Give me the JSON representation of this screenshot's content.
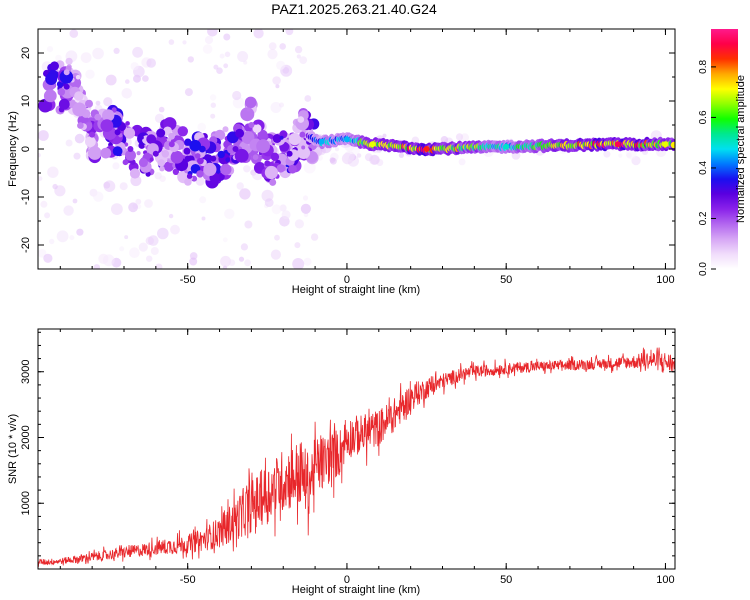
{
  "figure_title": "PAZ1.2025.263.21.40.G24",
  "colors": {
    "snr_line": "#e8272b",
    "axis": "#000000",
    "colormap": [
      "#ffffff",
      "#f0dcfb",
      "#d6a6f5",
      "#b266ef",
      "#8a22ea",
      "#5a00e0",
      "#1a10f0",
      "#0078ff",
      "#00e0f0",
      "#00e890",
      "#10ff00",
      "#90ff00",
      "#ffff00",
      "#ffa800",
      "#ff3000",
      "#ff0048",
      "#ff1a8c"
    ]
  },
  "chart_data": [
    {
      "type": "heatmap",
      "title": "",
      "xlabel": "Height of straight line (km)",
      "ylabel": "Frequency (Hz)",
      "xlim": [
        -97,
        103
      ],
      "ylim": [
        -25,
        25
      ],
      "xticks": [
        -50,
        0,
        50,
        100
      ],
      "xtick_labels": [
        "-50",
        "0",
        "50",
        "100"
      ],
      "yticks": [
        -20,
        -10,
        0,
        10,
        20
      ],
      "ytick_labels": [
        "-20",
        "-10",
        "0",
        "10",
        "20"
      ],
      "colorbar": {
        "label": "Normalized spectral amplitude",
        "range": [
          0,
          0.95
        ],
        "ticks": [
          0,
          0.2,
          0.4,
          0.6,
          0.8
        ],
        "tick_labels": [
          "0.0",
          "0.2",
          "0.4",
          "0.6",
          "0.8"
        ]
      },
      "description_points": [
        {
          "x": -88,
          "y": 13,
          "amp": 0.3
        },
        {
          "x": -88,
          "y": 16,
          "amp": 0.12
        },
        {
          "x": -80,
          "y": 3,
          "amp": 0.22
        },
        {
          "x": -72,
          "y": 3.5,
          "amp": 0.3
        },
        {
          "x": -68,
          "y": 0,
          "amp": 0.25
        },
        {
          "x": -60,
          "y": -1,
          "amp": 0.28
        },
        {
          "x": -55,
          "y": 1,
          "amp": 0.22
        },
        {
          "x": -50,
          "y": -2,
          "amp": 0.3
        },
        {
          "x": -42,
          "y": -2,
          "amp": 0.3
        },
        {
          "x": -35,
          "y": 0,
          "amp": 0.28
        },
        {
          "x": -30,
          "y": 5,
          "amp": 0.18
        },
        {
          "x": -25,
          "y": -3,
          "amp": 0.25
        },
        {
          "x": -18,
          "y": -1,
          "amp": 0.3
        },
        {
          "x": -14,
          "y": 3,
          "amp": 0.2
        },
        {
          "x": -8,
          "y": 1.5,
          "amp": 0.45
        },
        {
          "x": 0,
          "y": 2,
          "amp": 0.45
        },
        {
          "x": 8,
          "y": 1,
          "amp": 0.7
        },
        {
          "x": 25,
          "y": 0,
          "amp": 0.85
        },
        {
          "x": 50,
          "y": 0.5,
          "amp": 0.5
        },
        {
          "x": 85,
          "y": 1,
          "amp": 0.9
        },
        {
          "x": 100,
          "y": 1,
          "amp": 0.7
        }
      ]
    },
    {
      "type": "line",
      "title": "",
      "xlabel": "Height of straight line (km)",
      "ylabel": "SNR (10 * v/v)",
      "xlim": [
        -97,
        103
      ],
      "ylim": [
        0,
        3650
      ],
      "xticks": [
        -50,
        0,
        50,
        100
      ],
      "xtick_labels": [
        "-50",
        "0",
        "50",
        "100"
      ],
      "yticks": [
        1000,
        2000,
        3000
      ],
      "ytick_labels": [
        "1000",
        "2000",
        "3000"
      ],
      "series": [
        {
          "name": "SNR",
          "x": [
            -97,
            -90,
            -80,
            -70,
            -60,
            -50,
            -45,
            -40,
            -35,
            -30,
            -25,
            -20,
            -15,
            -12,
            -10,
            -5,
            -2,
            0,
            5,
            10,
            15,
            20,
            25,
            30,
            35,
            40,
            50,
            60,
            70,
            80,
            90,
            95,
            100,
            103
          ],
          "values": [
            100,
            120,
            180,
            250,
            320,
            380,
            450,
            560,
            750,
            950,
            1150,
            1350,
            1450,
            1300,
            1550,
            1700,
            1800,
            2000,
            2050,
            2150,
            2350,
            2600,
            2750,
            2850,
            2950,
            3000,
            3050,
            3080,
            3100,
            3120,
            3150,
            3180,
            3150,
            3100
          ],
          "noise": [
            60,
            60,
            90,
            110,
            140,
            180,
            220,
            300,
            400,
            500,
            550,
            600,
            650,
            600,
            550,
            500,
            450,
            400,
            380,
            350,
            320,
            260,
            200,
            160,
            130,
            120,
            110,
            100,
            100,
            100,
            130,
            170,
            200,
            150
          ]
        }
      ]
    }
  ]
}
